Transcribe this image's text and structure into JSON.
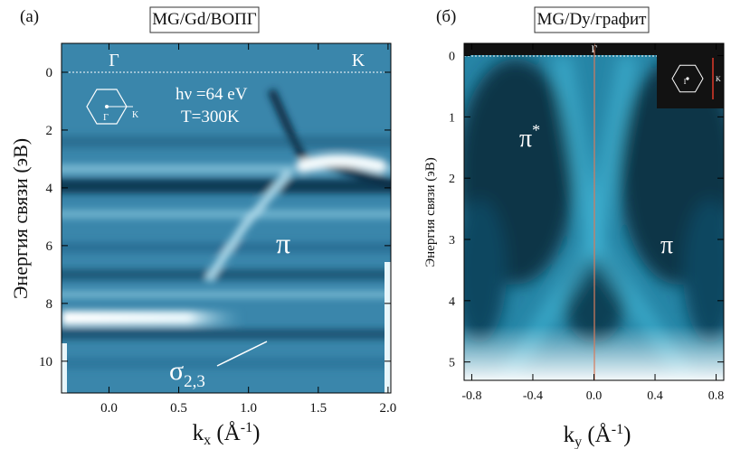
{
  "chart_data": [
    {
      "type": "heatmap",
      "panel_label": "(a)",
      "title": "MG/Gd/ВОПГ",
      "x_label": [
        "k",
        "x",
        " (Å",
        "-1",
        ")"
      ],
      "y_label": "Энергия связи (эВ)",
      "xlim": [
        -0.34,
        2.02
      ],
      "ylim": [
        -1.0,
        11.1
      ],
      "xticks": [
        {
          "value": 0,
          "label": "0.0"
        },
        0.5,
        {
          "value": 1,
          "label": "1.0"
        },
        1.5,
        {
          "value": 2,
          "label": "2.0"
        }
      ],
      "yticks": [
        0,
        2,
        4,
        6,
        8,
        10
      ],
      "annotations": {
        "gamma": "Γ",
        "k": "K",
        "photon": "hν =64 eV",
        "temperature": "T=300K",
        "pi": "π",
        "sigma": [
          "σ",
          "2,3"
        ],
        "inset_gamma": "Γ",
        "inset_k": "K"
      }
    },
    {
      "type": "heatmap",
      "panel_label": "(б)",
      "title": "MG/Dy/графит",
      "x_label": [
        "k",
        "y",
        " (Å",
        "-1",
        ")"
      ],
      "y_label": "Энергия связи (эВ)",
      "xlim": [
        -0.85,
        0.85
      ],
      "ylim": [
        -0.2,
        5.3
      ],
      "xticks": [
        -0.8,
        -0.4,
        {
          "value": 0,
          "label": "0.0"
        },
        0.4,
        0.8
      ],
      "yticks": [
        0,
        1,
        2,
        3,
        4,
        5
      ],
      "annotations": {
        "gamma": "Γ",
        "pi_star": [
          "π",
          "*"
        ],
        "pi": "π",
        "inset_gamma": "Γ",
        "inset_k": "K"
      }
    }
  ]
}
